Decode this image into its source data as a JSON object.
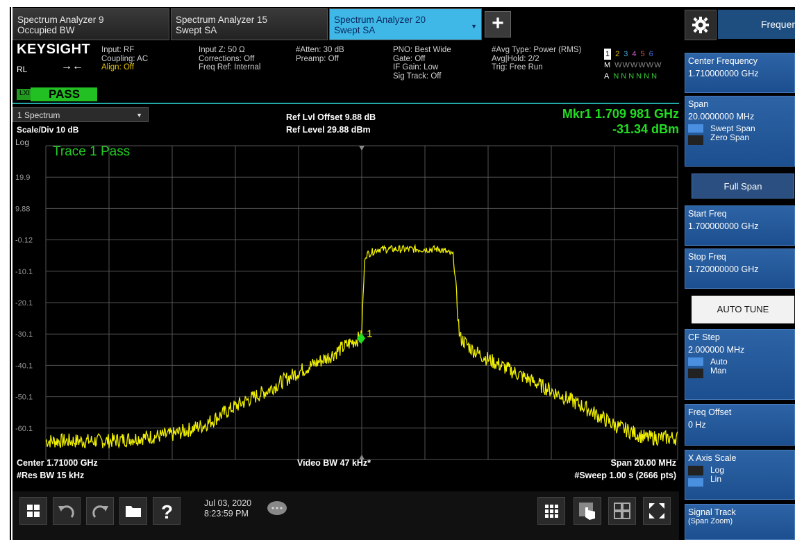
{
  "tabs": [
    {
      "line1": "Spectrum Analyzer 9",
      "line2": "Occupied BW"
    },
    {
      "line1": "Spectrum Analyzer 15",
      "line2": "Swept SA"
    },
    {
      "line1": "Spectrum Analyzer 20",
      "line2": "Swept SA",
      "active": true
    }
  ],
  "tab_caret": "▼",
  "plus_label": "+",
  "freq_tab_label": "Frequency",
  "infobar": {
    "logo": "KEYSIGHT",
    "rl": "RL",
    "arrow": "→←",
    "lxi": "LXI",
    "pass": "PASS",
    "col1": [
      "Input: RF",
      "Coupling: AC",
      "Align: Off"
    ],
    "col2": [
      "Input Z: 50 Ω",
      "Corrections: Off",
      "Freq Ref: Internal"
    ],
    "col3": [
      "#Atten: 30 dB",
      "Preamp: Off"
    ],
    "col4": [
      "PNO: Best Wide",
      "Gate: Off",
      "IF Gain: Low",
      "Sig Track: Off"
    ],
    "col5": [
      "#Avg Type: Power (RMS)",
      "Avg|Hold: 2/2",
      "Trig: Free Run"
    ],
    "trace_nums": [
      "1",
      "2",
      "3",
      "4",
      "5",
      "6"
    ],
    "trace_m": "M",
    "trace_m_vals": "WWWWWW",
    "trace_a": "A",
    "trace_a_vals": "NNNNNN"
  },
  "plot": {
    "dropdown": "1 Spectrum",
    "scale_div": "Scale/Div 10 dB",
    "log_label": "Log",
    "ref_offset": "Ref Lvl Offset 9.88 dB",
    "ref_level": "Ref Level 29.88 dBm",
    "mkr_freq": "Mkr1  1.709 981 GHz",
    "mkr_amp": "-31.34 dBm",
    "trace_pass": "Trace 1 Pass",
    "marker_label": "1",
    "y_ticks": [
      "19.9",
      "9.88",
      "-0.12",
      "-10.1",
      "-20.1",
      "-30.1",
      "-40.1",
      "-50.1",
      "-60.1"
    ],
    "center": "Center 1.71000 GHz",
    "res_bw": "#Res BW 15 kHz",
    "video_bw": "Video BW 47 kHz*",
    "span": "Span 20.00 MHz",
    "sweep": "#Sweep 1.00 s (2666 pts)"
  },
  "chart_data": {
    "type": "line",
    "x_unit": "MHz",
    "xlim": [
      1700,
      1720
    ],
    "ylim": [
      -69.9,
      29.9
    ],
    "ylabel": "dBm",
    "grid": true,
    "series": [
      {
        "x": [
          1700,
          1701,
          1702,
          1703,
          1704,
          1705,
          1706,
          1707,
          1708,
          1709,
          1709.6,
          1709.99,
          1710.1,
          1710.5,
          1711,
          1712.5,
          1712.9,
          1713.1,
          1713.5,
          1714,
          1715,
          1716,
          1717,
          1718,
          1719,
          1720
        ],
        "y": [
          -64,
          -64,
          -64,
          -63,
          -62,
          -59,
          -53,
          -48,
          -42,
          -37,
          -33,
          -31,
          -5,
          -3,
          -3,
          -3,
          -5,
          -31,
          -35,
          -38,
          -43,
          -48,
          -53,
          -59,
          -63,
          -63
        ]
      }
    ],
    "marker": {
      "x": 1709.981,
      "y": -31.34
    }
  },
  "taskbar": {
    "date": "Jul 03, 2020",
    "time": "8:23:59 PM"
  },
  "rpanel": {
    "center_freq_label": "Center Frequency",
    "center_freq_val": "1.710000000 GHz",
    "span_label": "Span",
    "span_val": "20.0000000 MHz",
    "swept_span": "Swept Span",
    "zero_span": "Zero Span",
    "full_span": "Full Span",
    "start_freq_label": "Start Freq",
    "start_freq_val": "1.700000000 GHz",
    "stop_freq_label": "Stop Freq",
    "stop_freq_val": "1.720000000 GHz",
    "auto_tune": "AUTO TUNE",
    "cf_step_label": "CF Step",
    "cf_step_val": "2.000000 MHz",
    "auto": "Auto",
    "man": "Man",
    "freq_offset_label": "Freq Offset",
    "freq_offset_val": "0 Hz",
    "x_axis_label": "X Axis Scale",
    "log": "Log",
    "lin": "Lin",
    "signal_track_label": "Signal Track",
    "signal_track_sub": "(Span Zoom)"
  }
}
